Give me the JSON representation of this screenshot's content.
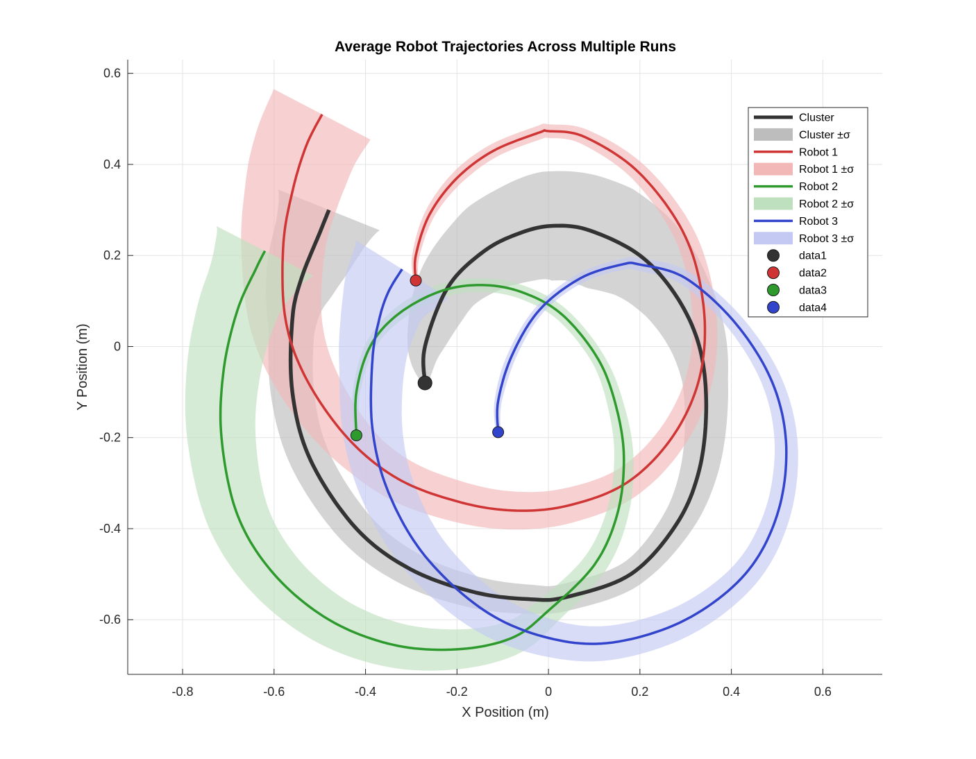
{
  "chart_data": {
    "type": "line",
    "title": "Average Robot Trajectories Across Multiple Runs",
    "xlabel": "X Position (m)",
    "ylabel": "Y Position (m)",
    "xlim": [
      -0.92,
      0.73
    ],
    "ylim": [
      -0.72,
      0.63
    ],
    "xticks": [
      -0.8,
      -0.6,
      -0.4,
      -0.2,
      0,
      0.2,
      0.4,
      0.6
    ],
    "yticks": [
      0.6,
      0.4,
      0.2,
      0,
      -0.2,
      -0.4,
      -0.6
    ],
    "xtick_labels": [
      "-0.8",
      "-0.6",
      "-0.4",
      "-0.2",
      "0",
      "0.2",
      "0.4",
      "0.6"
    ],
    "ytick_labels": [
      "0.6",
      "0.4",
      "0.2",
      "0",
      "-0.2",
      "-0.4",
      "-0.6"
    ],
    "grid": true,
    "legend_position": "top-right",
    "legend": [
      {
        "label": "Cluster",
        "kind": "line",
        "color": "#333333"
      },
      {
        "label": "Cluster ±σ",
        "kind": "band",
        "color": "#bdbdbd"
      },
      {
        "label": "Robot 1",
        "kind": "line",
        "color": "#d03535"
      },
      {
        "label": "Robot 1 ±σ",
        "kind": "band",
        "color": "#f2b8b8"
      },
      {
        "label": "Robot 2",
        "kind": "line",
        "color": "#2e9a2e"
      },
      {
        "label": "Robot 2 ±σ",
        "kind": "band",
        "color": "#bfe0bf"
      },
      {
        "label": "Robot 3",
        "kind": "line",
        "color": "#3344cc"
      },
      {
        "label": "Robot 3 ±σ",
        "kind": "band",
        "color": "#c3c9f2"
      },
      {
        "label": "data1",
        "kind": "marker",
        "color": "#333333"
      },
      {
        "label": "data2",
        "kind": "marker",
        "color": "#d03535"
      },
      {
        "label": "data3",
        "kind": "marker",
        "color": "#2e9a2e"
      },
      {
        "label": "data4",
        "kind": "marker",
        "color": "#3344cc"
      }
    ],
    "series": [
      {
        "name": "Cluster",
        "color": "#333333",
        "band_color": "#bdbdbd",
        "stroke_width": 5.5,
        "start_marker_r": 10,
        "sigma": [
          0.005,
          0.06,
          0.1,
          0.12,
          0.12,
          0.08,
          0.05,
          0.04,
          0.03,
          0.03,
          0.035,
          0.04,
          0.045,
          0.05,
          0.09,
          0.12
        ],
        "points": [
          [
            -0.27,
            -0.08
          ],
          [
            -0.27,
            0.0
          ],
          [
            -0.22,
            0.13
          ],
          [
            -0.14,
            0.21
          ],
          [
            -0.06,
            0.25
          ],
          [
            0.01,
            0.265
          ],
          [
            0.09,
            0.255
          ],
          [
            0.2,
            0.2
          ],
          [
            0.28,
            0.11
          ],
          [
            0.33,
            0.0
          ],
          [
            0.345,
            -0.13
          ],
          [
            0.33,
            -0.27
          ],
          [
            0.28,
            -0.39
          ],
          [
            0.18,
            -0.5
          ],
          [
            0.04,
            -0.55
          ],
          [
            -0.04,
            -0.555
          ],
          [
            -0.16,
            -0.54
          ],
          [
            -0.3,
            -0.49
          ],
          [
            -0.42,
            -0.4
          ],
          [
            -0.52,
            -0.25
          ],
          [
            -0.56,
            -0.1
          ],
          [
            -0.56,
            0.06
          ],
          [
            -0.54,
            0.15
          ],
          [
            -0.5,
            0.25
          ],
          [
            -0.48,
            0.3
          ]
        ]
      },
      {
        "name": "Robot 1",
        "color": "#d03535",
        "band_color": "#f2b8b8",
        "stroke_width": 3.5,
        "start_marker_r": 8,
        "sigma": [
          0.005,
          0.01,
          0.015,
          0.015,
          0.015,
          0.02,
          0.025,
          0.03,
          0.035,
          0.04,
          0.045,
          0.05,
          0.07,
          0.09,
          0.11,
          0.12
        ],
        "points": [
          [
            -0.29,
            0.145
          ],
          [
            -0.29,
            0.2
          ],
          [
            -0.26,
            0.29
          ],
          [
            -0.2,
            0.37
          ],
          [
            -0.12,
            0.43
          ],
          [
            -0.02,
            0.47
          ],
          [
            0.0,
            0.473
          ],
          [
            0.08,
            0.46
          ],
          [
            0.2,
            0.38
          ],
          [
            0.3,
            0.24
          ],
          [
            0.34,
            0.08
          ],
          [
            0.33,
            -0.07
          ],
          [
            0.27,
            -0.2
          ],
          [
            0.17,
            -0.3
          ],
          [
            0.04,
            -0.35
          ],
          [
            -0.08,
            -0.36
          ],
          [
            -0.2,
            -0.34
          ],
          [
            -0.33,
            -0.29
          ],
          [
            -0.44,
            -0.2
          ],
          [
            -0.53,
            -0.07
          ],
          [
            -0.575,
            0.06
          ],
          [
            -0.58,
            0.22
          ],
          [
            -0.56,
            0.34
          ],
          [
            -0.53,
            0.44
          ],
          [
            -0.495,
            0.51
          ]
        ]
      },
      {
        "name": "Robot 2",
        "color": "#2e9a2e",
        "band_color": "#bfe0bf",
        "stroke_width": 3.5,
        "start_marker_r": 8,
        "sigma": [
          0.005,
          0.01,
          0.015,
          0.015,
          0.015,
          0.015,
          0.02,
          0.025,
          0.03,
          0.04,
          0.05,
          0.06,
          0.07,
          0.08,
          0.09,
          0.12
        ],
        "points": [
          [
            -0.42,
            -0.195
          ],
          [
            -0.42,
            -0.1
          ],
          [
            -0.39,
            0.0
          ],
          [
            -0.33,
            0.07
          ],
          [
            -0.24,
            0.12
          ],
          [
            -0.15,
            0.135
          ],
          [
            -0.06,
            0.12
          ],
          [
            0.03,
            0.07
          ],
          [
            0.11,
            -0.03
          ],
          [
            0.15,
            -0.14
          ],
          [
            0.165,
            -0.25
          ],
          [
            0.15,
            -0.37
          ],
          [
            0.1,
            -0.48
          ],
          [
            0.0,
            -0.58
          ],
          [
            -0.08,
            -0.64
          ],
          [
            -0.2,
            -0.665
          ],
          [
            -0.34,
            -0.655
          ],
          [
            -0.48,
            -0.6
          ],
          [
            -0.6,
            -0.5
          ],
          [
            -0.68,
            -0.37
          ],
          [
            -0.715,
            -0.2
          ],
          [
            -0.71,
            -0.05
          ],
          [
            -0.68,
            0.08
          ],
          [
            -0.64,
            0.17
          ],
          [
            -0.62,
            0.21
          ]
        ]
      },
      {
        "name": "Robot 3",
        "color": "#3344cc",
        "band_color": "#c3c9f2",
        "stroke_width": 3.5,
        "start_marker_r": 8,
        "sigma": [
          0.005,
          0.01,
          0.01,
          0.012,
          0.015,
          0.02,
          0.025,
          0.03,
          0.035,
          0.04,
          0.05,
          0.06,
          0.07,
          0.09,
          0.12
        ],
        "points": [
          [
            -0.11,
            -0.188
          ],
          [
            -0.11,
            -0.12
          ],
          [
            -0.08,
            -0.02
          ],
          [
            -0.02,
            0.08
          ],
          [
            0.07,
            0.15
          ],
          [
            0.16,
            0.18
          ],
          [
            0.2,
            0.18
          ],
          [
            0.3,
            0.15
          ],
          [
            0.41,
            0.05
          ],
          [
            0.49,
            -0.08
          ],
          [
            0.52,
            -0.22
          ],
          [
            0.5,
            -0.37
          ],
          [
            0.43,
            -0.5
          ],
          [
            0.3,
            -0.6
          ],
          [
            0.14,
            -0.65
          ],
          [
            0.0,
            -0.64
          ],
          [
            -0.14,
            -0.58
          ],
          [
            -0.27,
            -0.46
          ],
          [
            -0.35,
            -0.32
          ],
          [
            -0.385,
            -0.18
          ],
          [
            -0.385,
            -0.03
          ],
          [
            -0.37,
            0.06
          ],
          [
            -0.35,
            0.12
          ],
          [
            -0.32,
            0.17
          ]
        ]
      }
    ]
  }
}
